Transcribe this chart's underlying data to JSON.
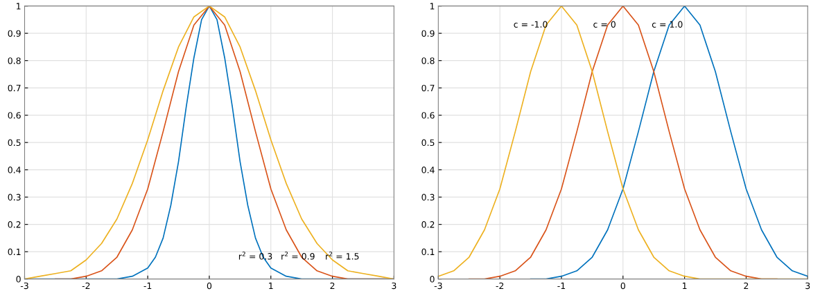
{
  "chart_data": [
    {
      "type": "line",
      "xlim": [
        -3,
        3
      ],
      "ylim": [
        0,
        1
      ],
      "xticks": [
        -3,
        -2,
        -1,
        0,
        1,
        2,
        3
      ],
      "yticks": [
        0,
        0.1,
        0.2,
        0.3,
        0.4,
        0.5,
        0.6,
        0.7,
        0.8,
        0.9,
        1
      ],
      "grid": true,
      "x": [
        -3,
        -2.75,
        -2.5,
        -2.25,
        -2,
        -1.75,
        -1.5,
        -1.25,
        -1,
        -0.75,
        -0.5,
        -0.25,
        0,
        0.25,
        0.5,
        0.75,
        1,
        1.25,
        1.5,
        1.75,
        2,
        2.25,
        2.5,
        2.75,
        3
      ],
      "series": [
        {
          "color": "#0072bd",
          "x": [
            -3,
            -1.5,
            -1.25,
            -1,
            -0.875,
            -0.75,
            -0.625,
            -0.5,
            -0.375,
            -0.25,
            -0.125,
            0,
            0.125,
            0.25,
            0.375,
            0.5,
            0.625,
            0.75,
            0.875,
            1,
            1.25,
            1.5,
            3
          ],
          "values": [
            0,
            0,
            0.01,
            0.04,
            0.08,
            0.15,
            0.27,
            0.43,
            0.63,
            0.81,
            0.95,
            1,
            0.95,
            0.81,
            0.63,
            0.43,
            0.27,
            0.15,
            0.08,
            0.04,
            0.01,
            0,
            0
          ]
        },
        {
          "color": "#d95319",
          "values": [
            null,
            null,
            0,
            0,
            0.01,
            0.03,
            0.08,
            0.18,
            0.33,
            0.54,
            0.76,
            0.93,
            1,
            0.93,
            0.76,
            0.54,
            0.33,
            0.18,
            0.08,
            0.03,
            0.01,
            0,
            0,
            0,
            0
          ]
        },
        {
          "color": "#edb120",
          "values": [
            0,
            0.01,
            0.02,
            0.03,
            0.07,
            0.13,
            0.22,
            0.35,
            0.51,
            0.69,
            0.85,
            0.96,
            1,
            0.96,
            0.85,
            0.69,
            0.51,
            0.35,
            0.22,
            0.13,
            0.07,
            0.03,
            0.02,
            0.01,
            0
          ]
        }
      ],
      "annotations": [
        "r$^{2}$ = 0.3",
        "r$^{2}$ = 0.9",
        "r$^{2}$ = 1.5"
      ]
    },
    {
      "type": "line",
      "xlim": [
        -3,
        3
      ],
      "ylim": [
        0,
        1
      ],
      "xticks": [
        -3,
        -2,
        -1,
        0,
        1,
        2,
        3
      ],
      "yticks": [
        0,
        0.1,
        0.2,
        0.3,
        0.4,
        0.5,
        0.6,
        0.7,
        0.8,
        0.9,
        1
      ],
      "grid": true,
      "x": [
        -3,
        -2.75,
        -2.5,
        -2.25,
        -2,
        -1.75,
        -1.5,
        -1.25,
        -1,
        -0.75,
        -0.5,
        -0.25,
        0,
        0.25,
        0.5,
        0.75,
        1,
        1.25,
        1.5,
        1.75,
        2,
        2.25,
        2.5,
        2.75,
        3
      ],
      "series": [
        {
          "color": "#0072bd",
          "values": [
            null,
            null,
            null,
            null,
            null,
            null,
            0,
            0,
            0.01,
            0.03,
            0.08,
            0.18,
            0.33,
            0.54,
            0.76,
            0.93,
            1,
            0.93,
            0.76,
            0.54,
            0.33,
            0.18,
            0.08,
            0.03,
            0.01
          ]
        },
        {
          "color": "#d95319",
          "values": [
            null,
            null,
            0,
            0,
            0.01,
            0.03,
            0.08,
            0.18,
            0.33,
            0.54,
            0.76,
            0.93,
            1,
            0.93,
            0.76,
            0.54,
            0.33,
            0.18,
            0.08,
            0.03,
            0.01,
            0,
            0,
            null,
            null
          ]
        },
        {
          "color": "#edb120",
          "values": [
            0.01,
            0.03,
            0.08,
            0.18,
            0.33,
            0.54,
            0.76,
            0.93,
            1,
            0.93,
            0.76,
            0.54,
            0.33,
            0.18,
            0.08,
            0.03,
            0.01,
            0,
            0,
            0,
            0,
            0,
            0,
            0,
            0
          ]
        }
      ],
      "annotations": [
        "c = -1.0",
        "c = 0",
        "c = 1.0"
      ]
    }
  ]
}
